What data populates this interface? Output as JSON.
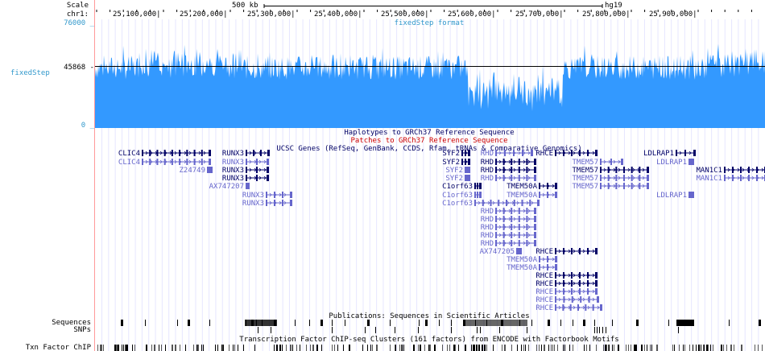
{
  "ruler": {
    "scale_label": "Scale",
    "chrom_label": "chr1:",
    "scale_bar_text": "500 kb",
    "assembly": "hg19",
    "positions": [
      "25,100,000|",
      "25,200,000|",
      "25,300,000|",
      "25,400,000|",
      "25,500,000|",
      "25,600,000|",
      "25,700,000|",
      "25,800,000|",
      "25,900,000|"
    ]
  },
  "signal_track": {
    "top_value": "76000 _",
    "mid_value": "45868 -",
    "bottom_value": "0 _",
    "track_name": "fixedStep",
    "center_label": "fixedStep format",
    "color": "#3399ff"
  },
  "track_titles": {
    "haplotypes": "Haplotypes to GRCh37 Reference Sequence",
    "patches": "Patches to GRCh37 Reference Sequence",
    "ucsc_genes": "UCSC Genes (RefSeq, GenBank, CCDS, Rfam, tRNAs & Comparative Genomics)",
    "publications": "Publications: Sequences in Scientific Articles",
    "txn_factor": "Transcription Factor ChIP-seq Clusters (161 factors) from ENCODE with Factorbook Motifs"
  },
  "colors": {
    "dark_gene": "#000066",
    "light_gene": "#6666cc",
    "haplotype_title": "#000066",
    "patch_title": "#cc0000",
    "signal_label": "#3399cc"
  },
  "gene_labels": [
    {
      "text": "CLIC4",
      "style": "dark"
    },
    {
      "text": "CLIC4",
      "style": "light"
    },
    {
      "text": "Z24749",
      "style": "light"
    },
    {
      "text": "RUNX3",
      "style": "dark"
    },
    {
      "text": "RUNX3",
      "style": "light"
    },
    {
      "text": "RUNX3",
      "style": "dark"
    },
    {
      "text": "RUNX3",
      "style": "dark"
    },
    {
      "text": "AX747207",
      "style": "light"
    },
    {
      "text": "RUNX3",
      "style": "light"
    },
    {
      "text": "RUNX3",
      "style": "light"
    },
    {
      "text": "SYF2",
      "style": "dark"
    },
    {
      "text": "SYF2",
      "style": "dark"
    },
    {
      "text": "SYF2",
      "style": "light"
    },
    {
      "text": "SYF2",
      "style": "light"
    },
    {
      "text": "C1orf63",
      "style": "dark"
    },
    {
      "text": "C1orf63",
      "style": "light"
    },
    {
      "text": "C1orf63",
      "style": "light"
    },
    {
      "text": "RHD",
      "style": "light"
    },
    {
      "text": "RHD",
      "style": "dark"
    },
    {
      "text": "RHD",
      "style": "dark"
    },
    {
      "text": "RHD",
      "style": "light"
    },
    {
      "text": "TMEM50A",
      "style": "dark"
    },
    {
      "text": "TMEM50A",
      "style": "light"
    },
    {
      "text": "RHD",
      "style": "light"
    },
    {
      "text": "RHD",
      "style": "light"
    },
    {
      "text": "RHD",
      "style": "light"
    },
    {
      "text": "RHD",
      "style": "light"
    },
    {
      "text": "RHD",
      "style": "light"
    },
    {
      "text": "AX747205",
      "style": "light"
    },
    {
      "text": "TMEM50A",
      "style": "light"
    },
    {
      "text": "TMEM50A",
      "style": "light"
    },
    {
      "text": "RHCE",
      "style": "dark"
    },
    {
      "text": "RHCE",
      "style": "dark"
    },
    {
      "text": "RHCE",
      "style": "dark"
    },
    {
      "text": "RHCE",
      "style": "dark"
    },
    {
      "text": "RHCE",
      "style": "light"
    },
    {
      "text": "RHCE",
      "style": "light"
    },
    {
      "text": "RHCE",
      "style": "light"
    },
    {
      "text": "TMEM57",
      "style": "light"
    },
    {
      "text": "TMEM57",
      "style": "dark"
    },
    {
      "text": "TMEM57",
      "style": "light"
    },
    {
      "text": "TMEM57",
      "style": "light"
    },
    {
      "text": "LDLRAP1",
      "style": "dark"
    },
    {
      "text": "LDLRAP1",
      "style": "light"
    },
    {
      "text": "LDLRAP1",
      "style": "light"
    },
    {
      "text": "MAN1C1",
      "style": "dark"
    },
    {
      "text": "MAN1C1",
      "style": "light"
    }
  ],
  "side_labels": {
    "sequences": "Sequences",
    "snps": "SNPs",
    "txn_factor": "Txn Factor ChIP"
  }
}
